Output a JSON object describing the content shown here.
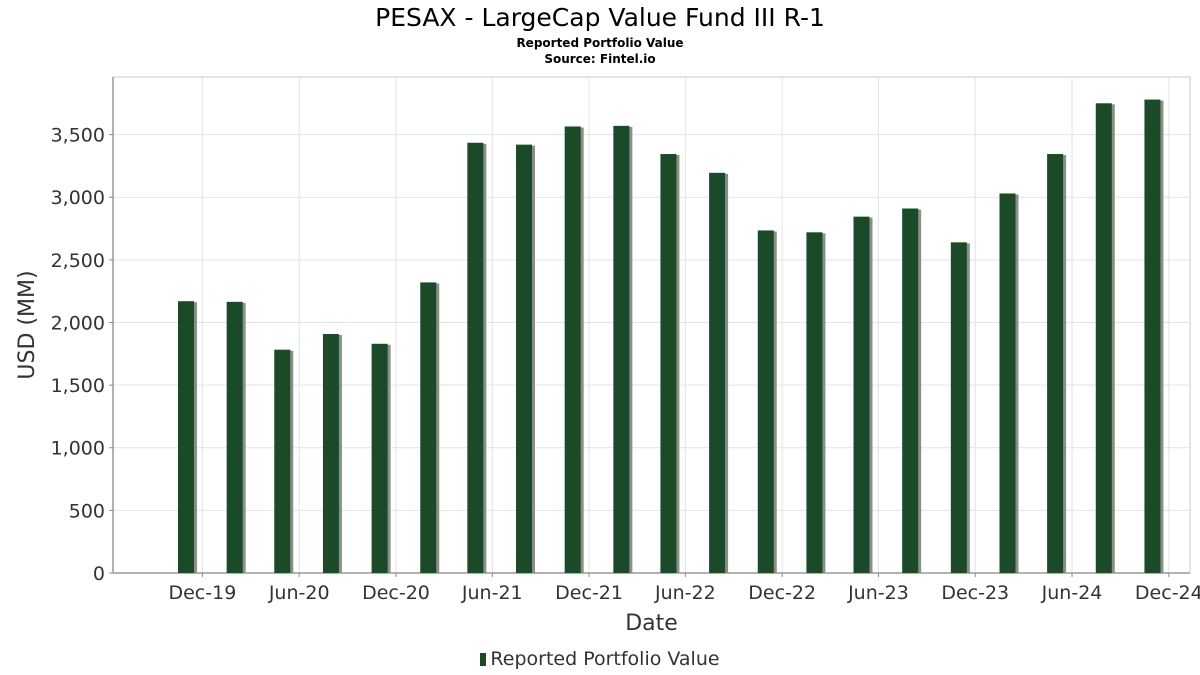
{
  "chart_data": {
    "type": "bar",
    "title": "PESAX - LargeCap Value Fund III R-1",
    "subtitle": "Reported Portfolio Value",
    "source": "Source: Fintel.io",
    "xlabel": "Date",
    "ylabel": "USD (MM)",
    "ylim": [
      0,
      3960
    ],
    "yticks": [
      0,
      500,
      1000,
      1500,
      2000,
      2500,
      3000,
      3500
    ],
    "ytick_labels": [
      "0",
      "500",
      "1,000",
      "1,500",
      "2,000",
      "2,500",
      "3,000",
      "3,500"
    ],
    "xlim": [
      "2019-06-15",
      "2025-01-10"
    ],
    "xticks": [
      "2019-12-01",
      "2020-06-01",
      "2020-12-01",
      "2021-06-01",
      "2021-12-01",
      "2022-06-01",
      "2022-12-01",
      "2023-06-01",
      "2023-12-01",
      "2024-06-01",
      "2024-12-01"
    ],
    "xtick_labels": [
      "Dec-19",
      "Jun-20",
      "Dec-20",
      "Jun-21",
      "Dec-21",
      "Jun-22",
      "Dec-22",
      "Jun-23",
      "Dec-23",
      "Jun-24",
      "Dec-24"
    ],
    "grid": true,
    "legend_position": "bottom",
    "bar_color": "#1a4a28",
    "shadow_color": "#8a8f88",
    "series": [
      {
        "name": "Reported Portfolio Value",
        "x": [
          "2019-10-31",
          "2020-01-31",
          "2020-04-30",
          "2020-07-31",
          "2020-10-31",
          "2021-01-31",
          "2021-04-30",
          "2021-07-31",
          "2021-10-31",
          "2022-01-31",
          "2022-04-30",
          "2022-07-31",
          "2022-10-31",
          "2023-01-31",
          "2023-04-30",
          "2023-07-31",
          "2023-10-31",
          "2024-01-31",
          "2024-04-30",
          "2024-07-31",
          "2024-10-31"
        ],
        "values": [
          2170,
          2165,
          1783,
          1908,
          1830,
          2320,
          3435,
          3420,
          3565,
          3570,
          3345,
          3195,
          2735,
          2720,
          2845,
          2910,
          2640,
          3030,
          3345,
          3750,
          3780
        ]
      }
    ]
  }
}
